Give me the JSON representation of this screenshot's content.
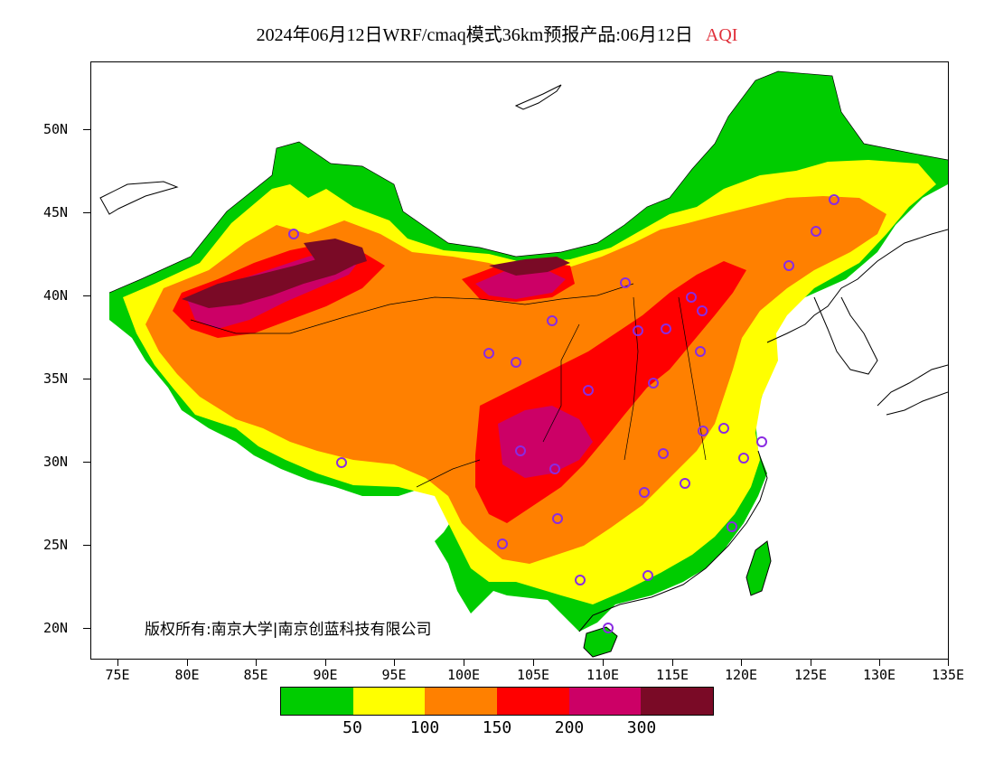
{
  "title": {
    "main": "2024年06月12日WRF/cmaq模式36km预报产品:06月12日",
    "variable": "AQI",
    "variable_color": "#e0303a"
  },
  "axes": {
    "lat_labels": [
      "50N",
      "45N",
      "40N",
      "35N",
      "30N",
      "25N",
      "20N"
    ],
    "lon_labels": [
      "75E",
      "80E",
      "85E",
      "90E",
      "95E",
      "100E",
      "105E",
      "110E",
      "115E",
      "120E",
      "125E",
      "130E",
      "135E"
    ]
  },
  "copyright": "版权所有:南京大学|南京创蓝科技有限公司",
  "legend": {
    "colors": [
      "#00cc00",
      "#ffff00",
      "#ff8000",
      "#ff0000",
      "#cc0066",
      "#7a0a26"
    ],
    "labels": [
      "50",
      "100",
      "150",
      "200",
      "300"
    ]
  },
  "stations_icon": "circle-station-icon",
  "colors": {
    "good": "#00cc00",
    "moderate": "#ffff00",
    "unhealthy_sensitive": "#ff8000",
    "unhealthy": "#ff0000",
    "very_unhealthy": "#cc0066",
    "hazardous": "#7a0a26",
    "station_marker": "#8a2be2"
  }
}
